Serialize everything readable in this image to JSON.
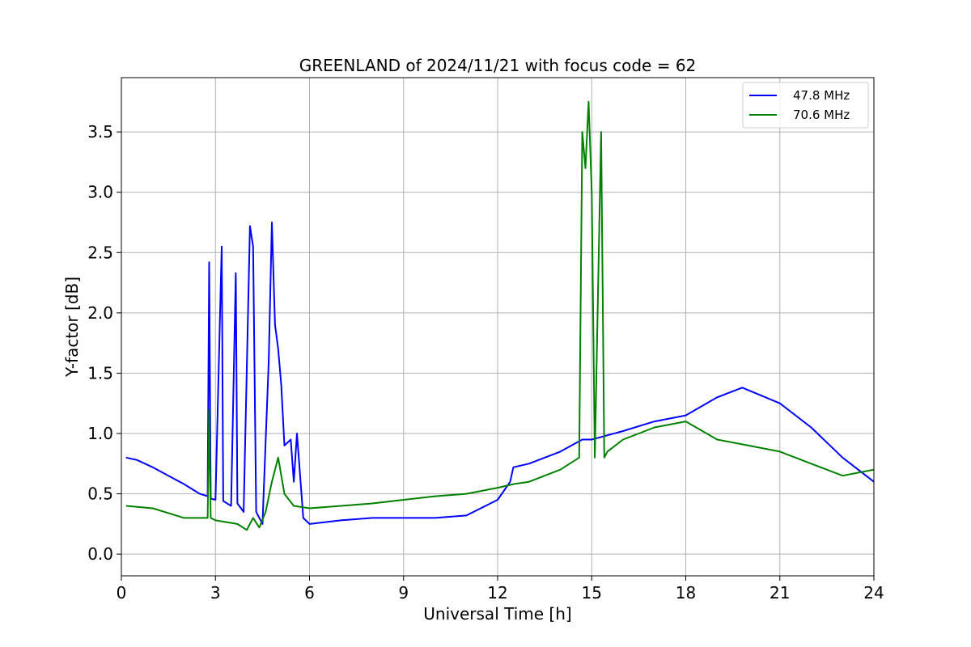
{
  "chart_data": {
    "type": "line",
    "title": "GREENLAND of 2024/11/21 with focus code = 62",
    "xlabel": "Universal Time [h]",
    "ylabel": "Y-factor [dB]",
    "xlim": [
      0,
      24
    ],
    "ylim": [
      -0.18,
      3.95
    ],
    "xticks": [
      "0",
      "3",
      "6",
      "9",
      "12",
      "15",
      "18",
      "21",
      "24"
    ],
    "yticks": [
      "0.0",
      "0.5",
      "1.0",
      "1.5",
      "2.0",
      "2.5",
      "3.0",
      "3.5"
    ],
    "grid": true,
    "legend_position": "top-right",
    "series": [
      {
        "name": "47.8 MHz",
        "color": "#0000ff",
        "x": [
          0.15,
          0.5,
          1,
          1.5,
          2,
          2.5,
          2.75,
          2.8,
          2.85,
          3,
          3.2,
          3.25,
          3.5,
          3.65,
          3.7,
          3.9,
          4.1,
          4.2,
          4.3,
          4.5,
          4.7,
          4.8,
          4.9,
          5.0,
          5.1,
          5.2,
          5.4,
          5.5,
          5.6,
          5.8,
          6,
          7,
          8,
          9,
          10,
          11,
          12,
          12.4,
          12.5,
          13,
          14,
          14.7,
          15,
          16,
          17,
          18,
          19,
          19.8,
          21,
          22,
          23,
          24
        ],
        "y": [
          0.8,
          0.78,
          0.72,
          0.65,
          0.58,
          0.5,
          0.48,
          2.42,
          0.46,
          0.45,
          2.55,
          0.44,
          0.4,
          2.33,
          0.42,
          0.35,
          2.72,
          2.55,
          0.35,
          0.25,
          1.6,
          2.75,
          1.9,
          1.7,
          1.4,
          0.9,
          0.95,
          0.6,
          1.0,
          0.3,
          0.25,
          0.28,
          0.3,
          0.3,
          0.3,
          0.32,
          0.45,
          0.6,
          0.72,
          0.75,
          0.85,
          0.95,
          0.95,
          1.02,
          1.1,
          1.15,
          1.3,
          1.38,
          1.25,
          1.05,
          0.8,
          0.6
        ]
      },
      {
        "name": "70.6 MHz",
        "color": "#008000",
        "x": [
          0.15,
          1,
          2,
          2.75,
          2.8,
          2.85,
          3,
          3.7,
          4.0,
          4.2,
          4.4,
          4.6,
          4.8,
          5.0,
          5.2,
          5.5,
          6,
          7,
          8,
          9,
          10,
          11,
          12,
          12.5,
          13,
          14,
          14.6,
          14.7,
          14.8,
          14.9,
          15.0,
          15.1,
          15.3,
          15.4,
          15.5,
          16,
          17,
          18,
          19,
          20,
          21,
          22,
          23,
          24
        ],
        "y": [
          0.4,
          0.38,
          0.3,
          0.3,
          1.2,
          0.3,
          0.28,
          0.25,
          0.2,
          0.3,
          0.22,
          0.35,
          0.6,
          0.8,
          0.5,
          0.4,
          0.38,
          0.4,
          0.42,
          0.45,
          0.48,
          0.5,
          0.55,
          0.58,
          0.6,
          0.7,
          0.8,
          3.5,
          3.2,
          3.75,
          3.0,
          0.8,
          3.5,
          0.8,
          0.85,
          0.95,
          1.05,
          1.1,
          0.95,
          0.9,
          0.85,
          0.75,
          0.65,
          0.7
        ]
      }
    ]
  }
}
